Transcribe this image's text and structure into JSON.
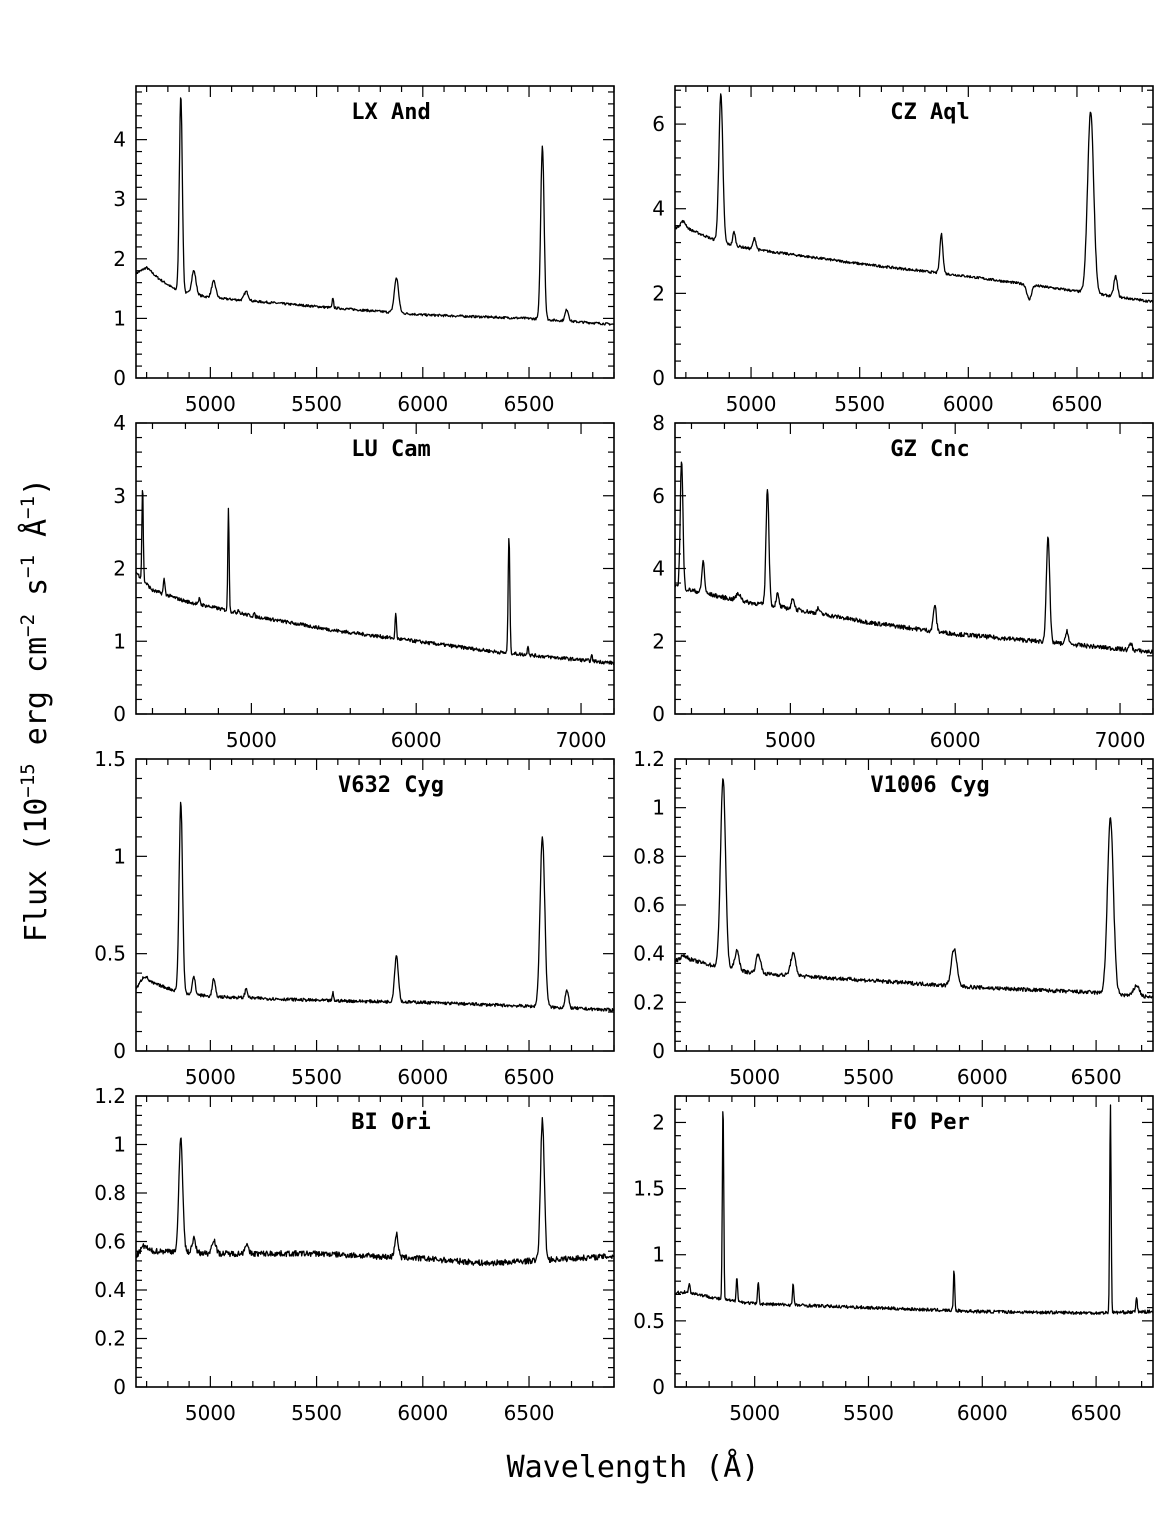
{
  "figure": {
    "xlabel": "Wavelength (Å)",
    "ylabel_parts": [
      "Flux (10",
      "−15",
      " erg cm",
      "−2",
      " s",
      "−1",
      " Å",
      "−1",
      ")"
    ]
  },
  "chart_data": [
    {
      "type": "line",
      "title": "LX And",
      "xlim": [
        4650,
        6900
      ],
      "ylim": [
        0,
        4.9
      ],
      "xticks": [
        5000,
        5500,
        6000,
        6500
      ],
      "yticks": [
        0,
        1,
        2,
        3,
        4
      ],
      "continuum": [
        [
          4650,
          1.75
        ],
        [
          4700,
          1.8
        ],
        [
          4850,
          1.45
        ],
        [
          5000,
          1.35
        ],
        [
          5500,
          1.2
        ],
        [
          6000,
          1.06
        ],
        [
          6500,
          1.0
        ],
        [
          6900,
          0.9
        ]
      ],
      "lines": [
        {
          "x": 4700,
          "peak": 1.85,
          "width": 25
        },
        {
          "x": 4861,
          "peak": 4.75,
          "width": 7
        },
        {
          "x": 4922,
          "peak": 1.8,
          "width": 10
        },
        {
          "x": 5016,
          "peak": 1.62,
          "width": 10
        },
        {
          "x": 5169,
          "peak": 1.45,
          "width": 10
        },
        {
          "x": 5577,
          "peak": 1.35,
          "width": 3
        },
        {
          "x": 5876,
          "peak": 1.68,
          "width": 10
        },
        {
          "x": 6563,
          "peak": 3.9,
          "width": 8
        },
        {
          "x": 6678,
          "peak": 1.15,
          "width": 8
        }
      ],
      "noise": 0.02
    },
    {
      "type": "line",
      "title": "CZ Aql",
      "xlim": [
        4650,
        6850
      ],
      "ylim": [
        0,
        6.9
      ],
      "xticks": [
        5000,
        5500,
        6000,
        6500
      ],
      "yticks": [
        0,
        2,
        4,
        6
      ],
      "continuum": [
        [
          4650,
          3.55
        ],
        [
          4700,
          3.55
        ],
        [
          4860,
          3.2
        ],
        [
          5000,
          3.05
        ],
        [
          5500,
          2.7
        ],
        [
          6000,
          2.4
        ],
        [
          6500,
          2.05
        ],
        [
          6850,
          1.8
        ]
      ],
      "lines": [
        {
          "x": 4686,
          "peak": 3.7,
          "width": 12
        },
        {
          "x": 4861,
          "peak": 6.7,
          "width": 9
        },
        {
          "x": 4922,
          "peak": 3.45,
          "width": 6
        },
        {
          "x": 5016,
          "peak": 3.3,
          "width": 7
        },
        {
          "x": 5876,
          "peak": 3.4,
          "width": 7
        },
        {
          "x": 6280,
          "peak": 1.85,
          "width": 10
        },
        {
          "x": 6563,
          "peak": 6.3,
          "width": 14
        },
        {
          "x": 6678,
          "peak": 2.4,
          "width": 8
        }
      ],
      "noise": 0.03
    },
    {
      "type": "line",
      "title": "LU Cam",
      "xlim": [
        4300,
        7200
      ],
      "ylim": [
        0,
        4
      ],
      "xticks": [
        5000,
        6000,
        7000
      ],
      "yticks": [
        0,
        1,
        2,
        3,
        4
      ],
      "continuum": [
        [
          4300,
          1.95
        ],
        [
          4400,
          1.7
        ],
        [
          4600,
          1.55
        ],
        [
          5000,
          1.35
        ],
        [
          5500,
          1.15
        ],
        [
          6000,
          1.0
        ],
        [
          6500,
          0.85
        ],
        [
          7200,
          0.7
        ]
      ],
      "lines": [
        {
          "x": 4340,
          "peak": 3.15,
          "width": 4
        },
        {
          "x": 4471,
          "peak": 1.85,
          "width": 5
        },
        {
          "x": 4686,
          "peak": 1.6,
          "width": 4
        },
        {
          "x": 4861,
          "peak": 2.85,
          "width": 4
        },
        {
          "x": 4922,
          "peak": 1.45,
          "width": 4
        },
        {
          "x": 5016,
          "peak": 1.38,
          "width": 4
        },
        {
          "x": 5876,
          "peak": 1.4,
          "width": 4
        },
        {
          "x": 6563,
          "peak": 2.45,
          "width": 5
        },
        {
          "x": 6678,
          "peak": 0.95,
          "width": 4
        },
        {
          "x": 7065,
          "peak": 0.8,
          "width": 4
        }
      ],
      "noise": 0.025
    },
    {
      "type": "line",
      "title": "GZ Cnc",
      "xlim": [
        4300,
        7200
      ],
      "ylim": [
        0,
        8
      ],
      "xticks": [
        5000,
        6000,
        7000
      ],
      "yticks": [
        0,
        2,
        4,
        6,
        8
      ],
      "continuum": [
        [
          4300,
          3.5
        ],
        [
          4400,
          3.4
        ],
        [
          4700,
          3.1
        ],
        [
          5000,
          2.9
        ],
        [
          5500,
          2.5
        ],
        [
          6000,
          2.2
        ],
        [
          6500,
          2.0
        ],
        [
          7200,
          1.7
        ]
      ],
      "lines": [
        {
          "x": 4340,
          "peak": 7.0,
          "width": 8
        },
        {
          "x": 4471,
          "peak": 4.2,
          "width": 8
        },
        {
          "x": 4686,
          "peak": 3.3,
          "width": 15
        },
        {
          "x": 4861,
          "peak": 6.2,
          "width": 9
        },
        {
          "x": 4922,
          "peak": 3.3,
          "width": 8
        },
        {
          "x": 5016,
          "peak": 3.2,
          "width": 8
        },
        {
          "x": 5169,
          "peak": 2.9,
          "width": 8
        },
        {
          "x": 5876,
          "peak": 3.0,
          "width": 9
        },
        {
          "x": 6563,
          "peak": 4.9,
          "width": 10
        },
        {
          "x": 6678,
          "peak": 2.3,
          "width": 8
        },
        {
          "x": 7065,
          "peak": 1.95,
          "width": 8
        }
      ],
      "noise": 0.06
    },
    {
      "type": "line",
      "title": "V632 Cyg",
      "xlim": [
        4650,
        6900
      ],
      "ylim": [
        0,
        1.5
      ],
      "xticks": [
        5000,
        5500,
        6000,
        6500
      ],
      "yticks": [
        0,
        0.5,
        1,
        1.5
      ],
      "continuum": [
        [
          4650,
          0.32
        ],
        [
          4700,
          0.36
        ],
        [
          4860,
          0.3
        ],
        [
          5000,
          0.28
        ],
        [
          5500,
          0.26
        ],
        [
          6000,
          0.25
        ],
        [
          6500,
          0.23
        ],
        [
          6900,
          0.21
        ]
      ],
      "lines": [
        {
          "x": 4686,
          "peak": 0.38,
          "width": 15
        },
        {
          "x": 4861,
          "peak": 1.28,
          "width": 8
        },
        {
          "x": 4922,
          "peak": 0.38,
          "width": 7
        },
        {
          "x": 5016,
          "peak": 0.37,
          "width": 7
        },
        {
          "x": 5169,
          "peak": 0.32,
          "width": 6
        },
        {
          "x": 5577,
          "peak": 0.3,
          "width": 3
        },
        {
          "x": 5876,
          "peak": 0.49,
          "width": 9
        },
        {
          "x": 6563,
          "peak": 1.1,
          "width": 11
        },
        {
          "x": 6678,
          "peak": 0.31,
          "width": 8
        }
      ],
      "noise": 0.008
    },
    {
      "type": "line",
      "title": "V1006 Cyg",
      "xlim": [
        4650,
        6750
      ],
      "ylim": [
        0,
        1.2
      ],
      "xticks": [
        5000,
        5500,
        6000,
        6500
      ],
      "yticks": [
        0,
        0.2,
        0.4,
        0.6,
        0.8,
        1,
        1.2
      ],
      "continuum": [
        [
          4650,
          0.37
        ],
        [
          4700,
          0.38
        ],
        [
          4860,
          0.34
        ],
        [
          5000,
          0.32
        ],
        [
          5500,
          0.29
        ],
        [
          6000,
          0.26
        ],
        [
          6500,
          0.24
        ],
        [
          6750,
          0.22
        ]
      ],
      "lines": [
        {
          "x": 4686,
          "peak": 0.39,
          "width": 15
        },
        {
          "x": 4861,
          "peak": 1.12,
          "width": 11
        },
        {
          "x": 4922,
          "peak": 0.41,
          "width": 10
        },
        {
          "x": 5016,
          "peak": 0.4,
          "width": 10
        },
        {
          "x": 5169,
          "peak": 0.4,
          "width": 11
        },
        {
          "x": 5876,
          "peak": 0.42,
          "width": 12
        },
        {
          "x": 6563,
          "peak": 0.96,
          "width": 13
        },
        {
          "x": 6678,
          "peak": 0.27,
          "width": 12
        }
      ],
      "noise": 0.008
    },
    {
      "type": "line",
      "title": "BI Ori",
      "xlim": [
        4650,
        6900
      ],
      "ylim": [
        0,
        1.2
      ],
      "xticks": [
        5000,
        5500,
        6000,
        6500
      ],
      "yticks": [
        0,
        0.2,
        0.4,
        0.6,
        0.8,
        1,
        1.2
      ],
      "continuum": [
        [
          4650,
          0.54
        ],
        [
          4700,
          0.56
        ],
        [
          4860,
          0.56
        ],
        [
          5000,
          0.55
        ],
        [
          5500,
          0.55
        ],
        [
          6000,
          0.53
        ],
        [
          6300,
          0.51
        ],
        [
          6500,
          0.52
        ],
        [
          6900,
          0.54
        ]
      ],
      "lines": [
        {
          "x": 4686,
          "peak": 0.58,
          "width": 14
        },
        {
          "x": 4861,
          "peak": 1.03,
          "width": 9
        },
        {
          "x": 4922,
          "peak": 0.61,
          "width": 8
        },
        {
          "x": 5016,
          "peak": 0.61,
          "width": 9
        },
        {
          "x": 5169,
          "peak": 0.59,
          "width": 8
        },
        {
          "x": 5876,
          "peak": 0.63,
          "width": 8
        },
        {
          "x": 6563,
          "peak": 1.1,
          "width": 9
        }
      ],
      "noise": 0.012
    },
    {
      "type": "line",
      "title": "FO Per",
      "xlim": [
        4650,
        6750
      ],
      "ylim": [
        0,
        2.2
      ],
      "xticks": [
        5000,
        5500,
        6000,
        6500
      ],
      "yticks": [
        0,
        0.5,
        1,
        1.5,
        2
      ],
      "continuum": [
        [
          4650,
          0.71
        ],
        [
          4700,
          0.72
        ],
        [
          4860,
          0.66
        ],
        [
          5000,
          0.63
        ],
        [
          5500,
          0.6
        ],
        [
          6000,
          0.57
        ],
        [
          6500,
          0.56
        ],
        [
          6750,
          0.57
        ]
      ],
      "lines": [
        {
          "x": 4713,
          "peak": 0.78,
          "width": 3
        },
        {
          "x": 4861,
          "peak": 2.15,
          "width": 3
        },
        {
          "x": 4922,
          "peak": 0.84,
          "width": 3
        },
        {
          "x": 5016,
          "peak": 0.8,
          "width": 3
        },
        {
          "x": 5169,
          "peak": 0.78,
          "width": 3
        },
        {
          "x": 5876,
          "peak": 0.88,
          "width": 3
        },
        {
          "x": 6563,
          "peak": 2.15,
          "width": 3
        },
        {
          "x": 6678,
          "peak": 0.68,
          "width": 3
        }
      ],
      "noise": 0.012
    }
  ]
}
